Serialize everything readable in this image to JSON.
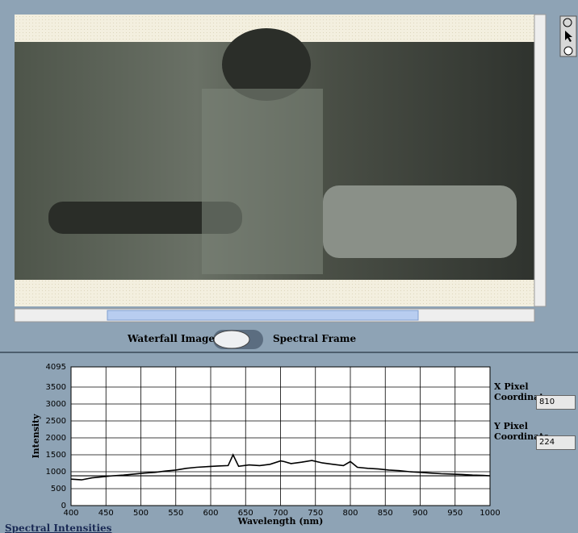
{
  "switch": {
    "left_label": "Waterfall Image",
    "right_label": "Spectral Frame"
  },
  "x_pixel": {
    "label": "X Pixel Coordinate",
    "value": "810"
  },
  "y_pixel": {
    "label": "Y Pixel Coordinate",
    "value": "224"
  },
  "chart_data": {
    "type": "line",
    "title": "Spectral Intensities",
    "x_label": "Wavelength (nm)",
    "y_label": "Intensity",
    "xlim": [
      400,
      1000
    ],
    "ylim": [
      0,
      4095
    ],
    "xticks": [
      400,
      450,
      500,
      550,
      600,
      650,
      700,
      750,
      800,
      850,
      900,
      950,
      1000
    ],
    "yticks": [
      0,
      500,
      1000,
      1500,
      2000,
      2500,
      3000,
      3500,
      4095
    ],
    "grid": true,
    "cursor_y": 880,
    "x": [
      400,
      415,
      430,
      445,
      460,
      475,
      490,
      505,
      520,
      535,
      550,
      565,
      580,
      595,
      610,
      625,
      632,
      640,
      655,
      670,
      685,
      700,
      705,
      715,
      730,
      745,
      760,
      775,
      790,
      800,
      810,
      825,
      840,
      855,
      870,
      885,
      900,
      915,
      930,
      945,
      960,
      975,
      990,
      1000
    ],
    "series": [
      {
        "name": "Intensity",
        "color": "#000000",
        "values": [
          780,
          760,
          820,
          850,
          880,
          900,
          930,
          960,
          980,
          1020,
          1050,
          1100,
          1130,
          1150,
          1170,
          1180,
          1500,
          1160,
          1200,
          1180,
          1220,
          1320,
          1300,
          1240,
          1280,
          1330,
          1260,
          1220,
          1180,
          1300,
          1130,
          1100,
          1080,
          1050,
          1030,
          1000,
          980,
          960,
          940,
          930,
          920,
          900,
          890,
          880
        ]
      }
    ]
  }
}
